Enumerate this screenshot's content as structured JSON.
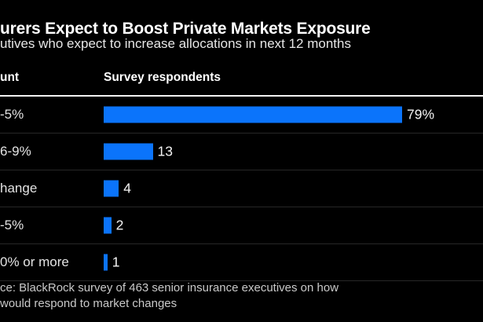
{
  "header": {
    "title": "urers Expect to Boost Private Markets Exposure",
    "subtitle": "utives who expect to increase allocations in next 12 months"
  },
  "table_header": {
    "col1": "unt",
    "col2": "Survey respondents"
  },
  "chart_data": {
    "type": "bar",
    "orientation": "horizontal",
    "title": "urers Expect to Boost Private Markets Exposure",
    "subtitle": "utives who expect to increase allocations in next 12 months",
    "categories": [
      "-5%",
      "6-9%",
      "hange",
      "-5%",
      "0% or more"
    ],
    "values": [
      79,
      13,
      4,
      2,
      1
    ],
    "value_labels": [
      "79%",
      "13",
      "4",
      "2",
      "1"
    ],
    "value_axis_label": "Survey respondents",
    "xlim": [
      0,
      100
    ],
    "grid": "row separators only",
    "legend": "none",
    "bar_color": "#0b74fb"
  },
  "footer": {
    "line1": "ce: BlackRock survey of 463 senior insurance executives on how",
    "line2": "would respond to market changes"
  },
  "colors": {
    "background": "#000000",
    "bar": "#0b74fb",
    "row_separator": "#272727",
    "header_rule": "#f2f2f2",
    "title_text": "#ffffff",
    "label_text": "#e3e3e3",
    "footer_text": "#c9c9c9"
  }
}
